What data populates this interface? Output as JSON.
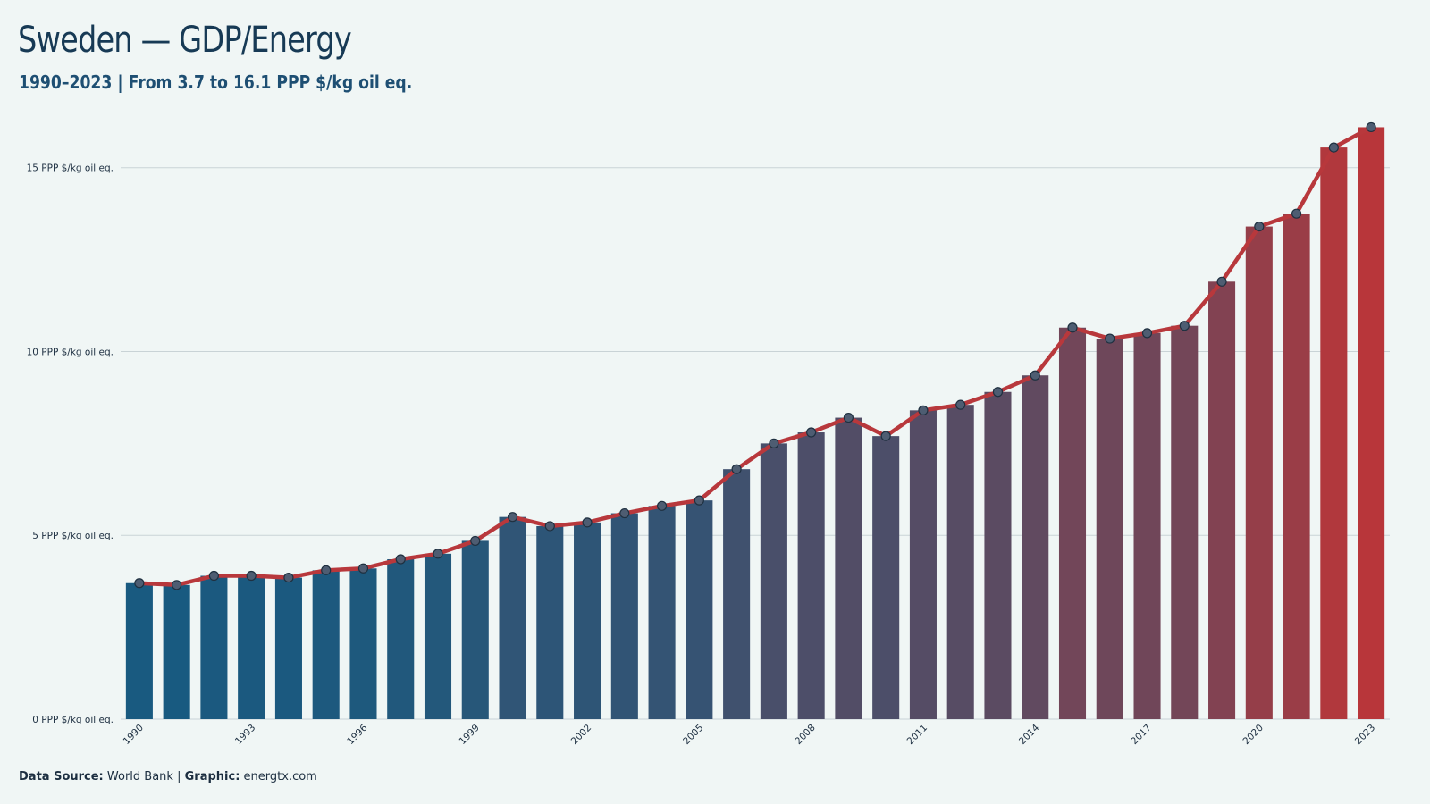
{
  "header": {
    "title": "Sweden — GDP/Energy",
    "subtitle": "1990–2023 | From 3.7 to 16.1 PPP $/kg oil eq."
  },
  "footer": {
    "source_label": "Data Source:",
    "source_value": "World Bank",
    "separator": "|",
    "graphic_label": "Graphic:",
    "graphic_value": "energtx.com"
  },
  "colors": {
    "background": "#f0f6f5",
    "bar_start": "#185a80",
    "bar_end": "#b8363a",
    "line": "#b8383c",
    "marker_fill": "#4e5d72",
    "marker_stroke": "#1f3040",
    "grid": "#c9d3d6",
    "tick_text": "#1c2e40"
  },
  "chart_data": {
    "type": "bar",
    "title": "Sweden — GDP/Energy",
    "subtitle": "1990–2023 | From 3.7 to 16.1 PPP $/kg oil eq.",
    "x": [
      1990,
      1991,
      1992,
      1993,
      1994,
      1995,
      1996,
      1997,
      1998,
      1999,
      2000,
      2001,
      2002,
      2003,
      2004,
      2005,
      2006,
      2007,
      2008,
      2009,
      2010,
      2011,
      2012,
      2013,
      2014,
      2015,
      2016,
      2017,
      2018,
      2019,
      2020,
      2021,
      2022,
      2023
    ],
    "values": [
      3.7,
      3.65,
      3.9,
      3.9,
      3.85,
      4.05,
      4.1,
      4.35,
      4.5,
      4.85,
      5.5,
      5.25,
      5.35,
      5.6,
      5.8,
      5.95,
      6.8,
      7.5,
      7.8,
      8.2,
      7.7,
      8.4,
      8.55,
      8.9,
      9.35,
      10.65,
      10.35,
      10.5,
      10.7,
      11.9,
      13.4,
      13.75,
      15.55,
      16.1
    ],
    "xtick_labels": [
      "1990",
      "1993",
      "1996",
      "1999",
      "2002",
      "2005",
      "2008",
      "2011",
      "2014",
      "2017",
      "2020",
      "2023"
    ],
    "ytick_labels": [
      "0 PPP $/kg oil eq.",
      "5 PPP $/kg oil eq.",
      "10 PPP $/kg oil eq.",
      "15 PPP $/kg oil eq."
    ],
    "yticks": [
      0,
      5,
      10,
      15
    ],
    "ylim": [
      0,
      16.5
    ],
    "xlabel": "",
    "ylabel": "",
    "grid": "horizontal",
    "overlay": "line with circular markers"
  }
}
